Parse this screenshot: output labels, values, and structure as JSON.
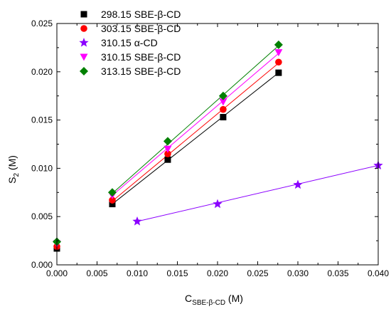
{
  "chart_data": {
    "type": "scatter",
    "title": "",
    "xlabel": {
      "main": "C",
      "sub": "SBE-β-CD",
      "unit": " (M)"
    },
    "ylabel": {
      "main": "S",
      "sub": "2",
      "unit": " (M)"
    },
    "xlim": [
      0.0,
      0.04
    ],
    "ylim": [
      0.0,
      0.025
    ],
    "xticks": [
      "0.000",
      "0.005",
      "0.010",
      "0.015",
      "0.020",
      "0.025",
      "0.030",
      "0.035",
      "0.040"
    ],
    "yticks": [
      "0.000",
      "0.005",
      "0.010",
      "0.015",
      "0.020",
      "0.025"
    ],
    "legend_position": "top-left",
    "grid": false,
    "series": [
      {
        "name": "298.15 SBE-β-CD",
        "marker": "square",
        "color": "#000000",
        "x": [
          0.0,
          0.0069,
          0.0138,
          0.0207,
          0.0276
        ],
        "y": [
          0.0017,
          0.0063,
          0.0109,
          0.0153,
          0.0199
        ],
        "fit": [
          [
            0.0069,
            0.0063
          ],
          [
            0.0276,
            0.0199
          ]
        ]
      },
      {
        "name": "303.15 SBE-β-CD",
        "marker": "circle",
        "color": "#ff0000",
        "x": [
          0.0,
          0.0069,
          0.0138,
          0.0207,
          0.0276
        ],
        "y": [
          0.0019,
          0.0067,
          0.0115,
          0.0161,
          0.021
        ],
        "fit": [
          [
            0.0069,
            0.0066
          ],
          [
            0.0276,
            0.0209
          ]
        ]
      },
      {
        "name": "310.15 α-CD",
        "marker": "star",
        "color": "#8b00ff",
        "x": [
          0.01,
          0.02,
          0.03,
          0.04
        ],
        "y": [
          0.0045,
          0.0063,
          0.0083,
          0.0103
        ],
        "fit": [
          [
            0.01,
            0.0045
          ],
          [
            0.04,
            0.0103
          ]
        ]
      },
      {
        "name": "310.15 SBE-β-CD",
        "marker": "triangle-down",
        "color": "#ff00ff",
        "x": [
          0.0,
          0.0069,
          0.0138,
          0.0207,
          0.0276
        ],
        "y": [
          0.0022,
          0.0072,
          0.012,
          0.0169,
          0.022
        ],
        "fit": [
          [
            0.0069,
            0.0072
          ],
          [
            0.0276,
            0.0219
          ]
        ]
      },
      {
        "name": "313.15 SBE-β-CD",
        "marker": "diamond",
        "color": "#008000",
        "x": [
          0.0,
          0.0069,
          0.0138,
          0.0207,
          0.0276
        ],
        "y": [
          0.0024,
          0.0075,
          0.0128,
          0.0175,
          0.0228
        ],
        "fit": [
          [
            0.0069,
            0.0074
          ],
          [
            0.0276,
            0.0227
          ]
        ]
      }
    ]
  }
}
